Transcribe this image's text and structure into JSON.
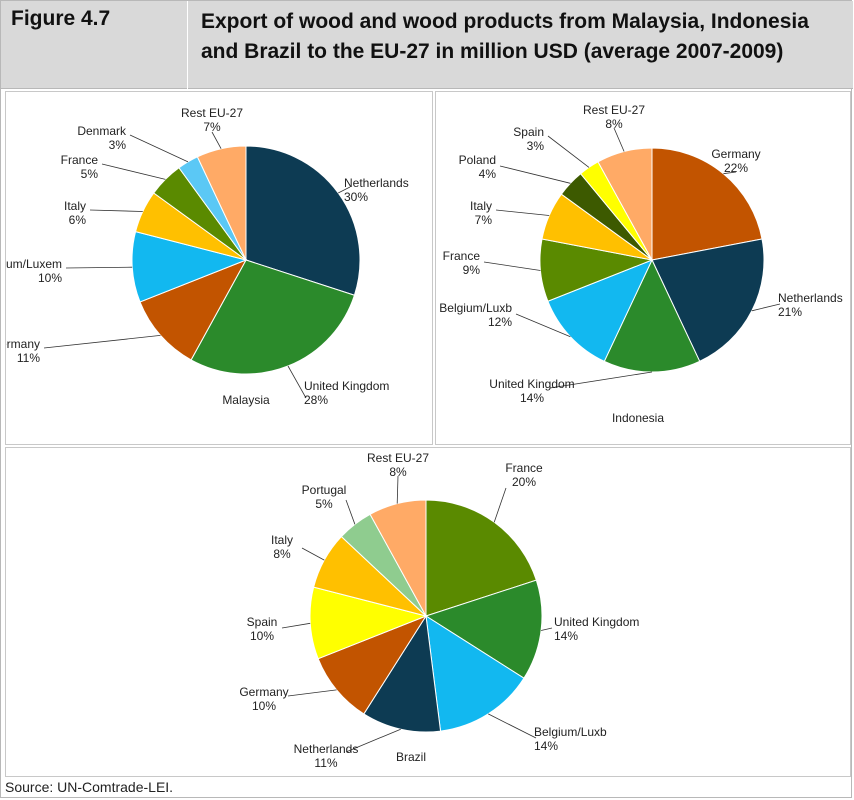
{
  "figure": {
    "label": "Figure 4.7",
    "title_line1": "Export of wood and wood products from Malaysia, Indonesia",
    "title_line2": "and Brazil to the EU-27 in million USD (average 2007-2009)"
  },
  "source": "Source: UN-Comtrade-LEI.",
  "chart_data": [
    {
      "type": "pie",
      "title": "Malaysia",
      "categories": [
        "Netherlands",
        "United Kingdom",
        "Germany",
        "Belgium/Luxem",
        "Italy",
        "France",
        "Denmark",
        "Rest EU-27"
      ],
      "values": [
        30,
        28,
        11,
        10,
        6,
        5,
        3,
        7
      ],
      "labels": [
        "30%",
        "28%",
        "11%",
        "10%",
        "6%",
        "5%",
        "3%",
        "7%"
      ],
      "colors": [
        "#0d3b53",
        "#2b8a2b",
        "#c25400",
        "#12b8f0",
        "#ffc000",
        "#5a8a00",
        "#5bc8f5",
        "#ffaa66"
      ]
    },
    {
      "type": "pie",
      "title": "Indonesia",
      "categories": [
        "Germany",
        "Netherlands",
        "United Kingdom",
        "Belgium/Luxb",
        "France",
        "Italy",
        "Poland",
        "Spain",
        "Rest EU-27"
      ],
      "values": [
        22,
        21,
        14,
        12,
        9,
        7,
        4,
        3,
        8
      ],
      "labels": [
        "22%",
        "21%",
        "14%",
        "12%",
        "9%",
        "7%",
        "4%",
        "3%",
        "8%"
      ],
      "colors": [
        "#c25400",
        "#0d3b53",
        "#2b8a2b",
        "#12b8f0",
        "#5a8a00",
        "#ffc000",
        "#3d5a00",
        "#ffff00",
        "#ffaa66"
      ]
    },
    {
      "type": "pie",
      "title": "Brazil",
      "categories": [
        "France",
        "United Kingdom",
        "Belgium/Luxb",
        "Netherlands",
        "Germany",
        "Spain",
        "Italy",
        "Portugal",
        "Rest EU-27"
      ],
      "values": [
        20,
        14,
        14,
        11,
        10,
        10,
        8,
        5,
        8
      ],
      "labels": [
        "20%",
        "14%",
        "14%",
        "11%",
        "10%",
        "10%",
        "8%",
        "5%",
        "8%"
      ],
      "colors": [
        "#5a8a00",
        "#2b8a2b",
        "#12b8f0",
        "#0d3b53",
        "#c25400",
        "#ffff00",
        "#ffc000",
        "#8fcc8f",
        "#ffaa66"
      ]
    }
  ]
}
